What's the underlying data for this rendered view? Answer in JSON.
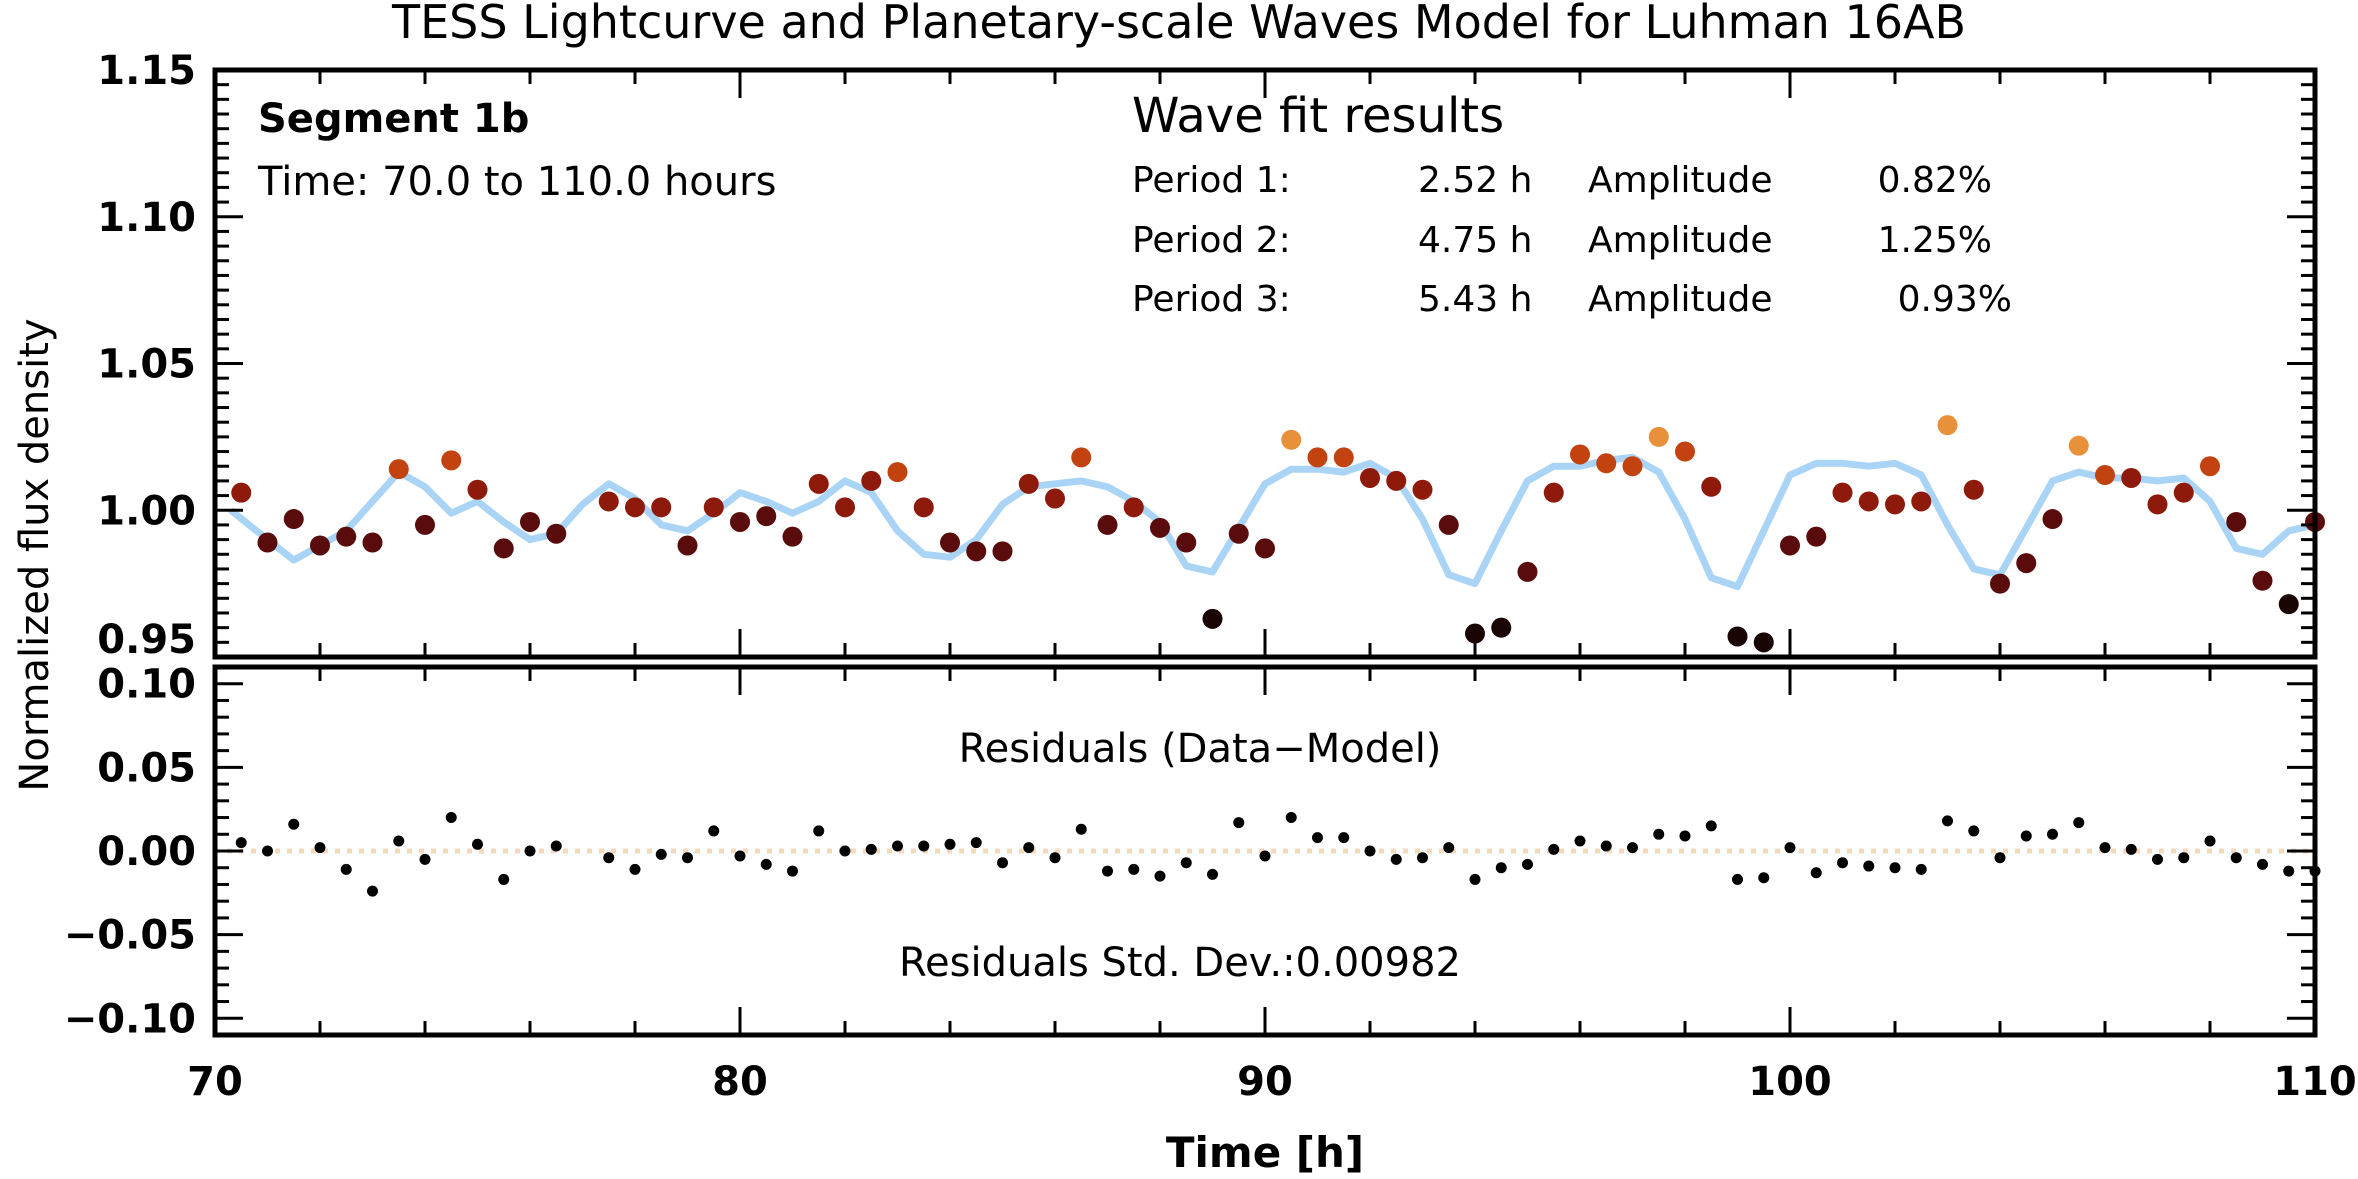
{
  "chart_data": {
    "type": "scatter",
    "title": "TESS Lightcurve and Planetary-scale Waves Model for Luhman 16AB",
    "xlabel": "Time [h]",
    "ylabel": "Normalized flux density",
    "xlim": [
      70,
      110
    ],
    "x_ticks": [
      "70",
      "80",
      "90",
      "100",
      "110"
    ],
    "colors": {
      "model": "#aad4f5",
      "zero_line": "#f3d9bd",
      "residual": "#000000",
      "color_scale": [
        "#1a0505",
        "#5a0b0b",
        "#8e1a0c",
        "#c24210",
        "#e8903a"
      ]
    },
    "panels": [
      {
        "name": "lightcurve",
        "ylim": [
          0.95,
          1.15
        ],
        "y_ticks": [
          "0.95",
          "1.00",
          "1.05",
          "1.10",
          "1.15"
        ],
        "segment_label": "Segment 1b",
        "time_label": "Time: 70.0 to 110.0 hours",
        "wave_fit": {
          "heading": "Wave fit results",
          "rows": [
            {
              "label": "Period 1:",
              "period": "2.52 h",
              "amp_label": "Amplitude",
              "amplitude": "0.82%"
            },
            {
              "label": "Period 2:",
              "period": "4.75 h",
              "amp_label": "Amplitude",
              "amplitude": "1.25%"
            },
            {
              "label": "Period 3:",
              "period": "5.43 h",
              "amp_label": "Amplitude",
              "amplitude": "0.93%"
            }
          ]
        },
        "series": [
          {
            "name": "Data",
            "x": [
              70.5,
              71.0,
              71.5,
              72.0,
              72.5,
              73.0,
              73.5,
              74.0,
              74.5,
              75.0,
              75.5,
              76.0,
              76.5,
              77.5,
              78.0,
              78.5,
              79.0,
              79.5,
              80.0,
              80.5,
              81.0,
              81.5,
              82.0,
              82.5,
              83.0,
              83.5,
              84.0,
              84.5,
              85.0,
              85.5,
              86.0,
              86.5,
              87.0,
              87.5,
              88.0,
              88.5,
              89.0,
              89.5,
              90.0,
              90.5,
              91.0,
              91.5,
              92.0,
              92.5,
              93.0,
              93.5,
              94.0,
              94.5,
              95.0,
              95.5,
              96.0,
              96.5,
              97.0,
              97.5,
              98.0,
              98.5,
              99.0,
              99.5,
              100.0,
              100.5,
              101.0,
              101.5,
              102.0,
              102.5,
              103.0,
              103.5,
              104.0,
              104.5,
              105.0,
              105.5,
              106.0,
              106.5,
              107.0,
              107.5,
              108.0,
              108.5,
              109.0,
              109.5,
              110.0
            ],
            "y": [
              1.006,
              0.989,
              0.997,
              0.988,
              0.991,
              0.989,
              1.014,
              0.995,
              1.017,
              1.007,
              0.987,
              0.996,
              0.992,
              1.003,
              1.001,
              1.001,
              0.988,
              1.001,
              0.996,
              0.998,
              0.991,
              1.009,
              1.001,
              1.01,
              1.013,
              1.001,
              0.989,
              0.986,
              0.986,
              1.009,
              1.004,
              1.018,
              0.995,
              1.001,
              0.994,
              0.989,
              0.963,
              0.992,
              0.987,
              1.024,
              1.018,
              1.018,
              1.011,
              1.01,
              1.007,
              0.995,
              0.958,
              0.96,
              0.979,
              1.006,
              1.019,
              1.016,
              1.015,
              1.025,
              1.02,
              1.008,
              0.957,
              0.955,
              0.988,
              0.991,
              1.006,
              1.003,
              1.002,
              1.003,
              1.029,
              1.007,
              0.975,
              0.982,
              0.997,
              1.022,
              1.012,
              1.011,
              1.002,
              1.006,
              1.015,
              0.996,
              0.976,
              0.968,
              0.996
            ]
          },
          {
            "name": "Model",
            "x": [
              70.3,
              71.0,
              71.5,
              72.0,
              72.5,
              73.0,
              73.5,
              74.0,
              74.5,
              75.0,
              75.5,
              76.0,
              76.5,
              77.0,
              77.5,
              78.0,
              78.5,
              79.0,
              79.5,
              80.0,
              80.5,
              81.0,
              81.5,
              82.0,
              82.5,
              83.0,
              83.5,
              84.0,
              84.5,
              85.0,
              85.5,
              86.0,
              86.5,
              87.0,
              87.5,
              88.0,
              88.5,
              89.0,
              89.5,
              90.0,
              90.5,
              91.0,
              91.5,
              92.0,
              92.5,
              93.0,
              93.5,
              94.0,
              94.5,
              95.0,
              95.5,
              96.0,
              96.5,
              97.0,
              97.5,
              98.0,
              98.5,
              99.0,
              99.5,
              100.0,
              100.5,
              101.0,
              101.5,
              102.0,
              102.5,
              103.0,
              103.5,
              104.0,
              104.5,
              105.0,
              105.5,
              106.0,
              106.5,
              107.0,
              107.5,
              108.0,
              108.5,
              109.0,
              109.5,
              110.0
            ],
            "y": [
              1.0,
              0.99,
              0.983,
              0.988,
              0.993,
              1.003,
              1.013,
              1.008,
              0.999,
              1.003,
              0.996,
              0.99,
              0.992,
              1.002,
              1.009,
              1.004,
              0.995,
              0.993,
              0.999,
              1.006,
              1.003,
              0.999,
              1.003,
              1.01,
              1.006,
              0.993,
              0.985,
              0.984,
              0.99,
              1.002,
              1.008,
              1.009,
              1.01,
              1.008,
              1.003,
              0.996,
              0.981,
              0.979,
              0.994,
              1.009,
              1.014,
              1.014,
              1.013,
              1.016,
              1.011,
              0.997,
              0.978,
              0.975,
              0.993,
              1.01,
              1.015,
              1.015,
              1.017,
              1.018,
              1.013,
              0.997,
              0.977,
              0.974,
              0.993,
              1.012,
              1.016,
              1.016,
              1.015,
              1.016,
              1.012,
              0.995,
              0.98,
              0.978,
              0.994,
              1.01,
              1.013,
              1.011,
              1.011,
              1.01,
              1.011,
              1.003,
              0.987,
              0.985,
              0.993,
              0.995
            ]
          }
        ]
      },
      {
        "name": "residuals",
        "ylim": [
          -0.11,
          0.11
        ],
        "y_ticks": [
          "−0.10",
          "−0.05",
          "0.00",
          "0.05",
          "0.10"
        ],
        "y_tick_values": [
          -0.1,
          -0.05,
          0.0,
          0.05,
          0.1
        ],
        "label": "Residuals (Data−Model)",
        "std_label": "Residuals Std. Dev.:0.00982",
        "series": [
          {
            "name": "Residuals",
            "x": [
              70.5,
              71.0,
              71.5,
              72.0,
              72.5,
              73.0,
              73.5,
              74.0,
              74.5,
              75.0,
              75.5,
              76.0,
              76.5,
              77.5,
              78.0,
              78.5,
              79.0,
              79.5,
              80.0,
              80.5,
              81.0,
              81.5,
              82.0,
              82.5,
              83.0,
              83.5,
              84.0,
              84.5,
              85.0,
              85.5,
              86.0,
              86.5,
              87.0,
              87.5,
              88.0,
              88.5,
              89.0,
              89.5,
              90.0,
              90.5,
              91.0,
              91.5,
              92.0,
              92.5,
              93.0,
              93.5,
              94.0,
              94.5,
              95.0,
              95.5,
              96.0,
              96.5,
              97.0,
              97.5,
              98.0,
              98.5,
              99.0,
              99.5,
              100.0,
              100.5,
              101.0,
              101.5,
              102.0,
              102.5,
              103.0,
              103.5,
              104.0,
              104.5,
              105.0,
              105.5,
              106.0,
              106.5,
              107.0,
              107.5,
              108.0,
              108.5,
              109.0,
              109.5,
              110.0
            ],
            "y": [
              0.005,
              0.0,
              0.016,
              0.002,
              -0.011,
              -0.024,
              0.006,
              -0.005,
              0.02,
              0.004,
              -0.017,
              0.0,
              0.003,
              -0.004,
              -0.011,
              -0.002,
              -0.004,
              0.012,
              -0.003,
              -0.008,
              -0.012,
              0.012,
              0.0,
              0.001,
              0.003,
              0.003,
              0.004,
              0.005,
              -0.007,
              0.002,
              -0.004,
              0.013,
              -0.012,
              -0.011,
              -0.015,
              -0.007,
              -0.014,
              0.017,
              -0.003,
              0.02,
              0.008,
              0.008,
              0.0,
              -0.005,
              -0.004,
              0.002,
              -0.017,
              -0.01,
              -0.008,
              0.001,
              0.006,
              0.003,
              0.002,
              0.01,
              0.009,
              0.015,
              -0.017,
              -0.016,
              0.002,
              -0.013,
              -0.007,
              -0.009,
              -0.01,
              -0.011,
              0.018,
              0.012,
              -0.004,
              0.009,
              0.01,
              0.017,
              0.002,
              0.001,
              -0.005,
              -0.004,
              0.006,
              -0.004,
              -0.008,
              -0.012,
              -0.012
            ]
          }
        ]
      }
    ]
  }
}
